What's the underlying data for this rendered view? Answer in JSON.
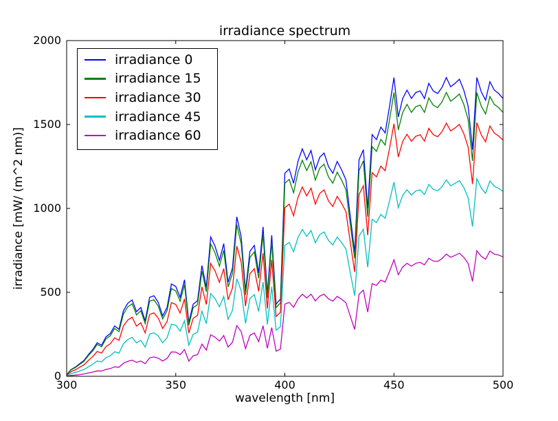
{
  "chart_data": {
    "type": "line",
    "title": "irradiance spectrum",
    "xlabel": "wavelength [nm]",
    "ylabel": "irradiance [mW/ (m^2 nm)]",
    "xlim": [
      300,
      500
    ],
    "ylim": [
      0,
      2000
    ],
    "grid": false,
    "legend_position": "upper left",
    "xticks": [
      300,
      350,
      400,
      450,
      500
    ],
    "yticks": [
      0,
      500,
      1000,
      1500,
      2000
    ],
    "xtick_labels": [
      "300",
      "350",
      "400",
      "450",
      "500"
    ],
    "ytick_labels": [
      "0",
      "500",
      "1000",
      "1500",
      "2000"
    ],
    "x": [
      300,
      302,
      304,
      306,
      308,
      310,
      312,
      314,
      316,
      318,
      320,
      322,
      324,
      326,
      328,
      330,
      332,
      334,
      336,
      338,
      340,
      342,
      344,
      346,
      348,
      350,
      352,
      354,
      356,
      358,
      360,
      362,
      364,
      366,
      368,
      370,
      372,
      374,
      376,
      378,
      380,
      382,
      384,
      386,
      388,
      390,
      392,
      394,
      396,
      398,
      400,
      402,
      404,
      406,
      408,
      410,
      412,
      414,
      416,
      418,
      420,
      422,
      424,
      426,
      428,
      430,
      432,
      434,
      436,
      438,
      440,
      442,
      444,
      446,
      448,
      450,
      452,
      454,
      456,
      458,
      460,
      462,
      464,
      466,
      468,
      470,
      472,
      474,
      476,
      478,
      480,
      482,
      484,
      486,
      488,
      490,
      492,
      494,
      496,
      498,
      500
    ],
    "series": [
      {
        "name": "irradiance 0",
        "color": "#0000ff",
        "values": [
          10,
          40,
          55,
          75,
          95,
          130,
          160,
          200,
          185,
          235,
          255,
          300,
          280,
          390,
          435,
          455,
          385,
          410,
          330,
          470,
          480,
          440,
          360,
          410,
          550,
          535,
          470,
          575,
          320,
          430,
          450,
          660,
          530,
          830,
          775,
          690,
          790,
          560,
          645,
          950,
          830,
          510,
          745,
          780,
          615,
          890,
          490,
          840,
          430,
          460,
          1210,
          1235,
          1150,
          1280,
          1355,
          1290,
          1345,
          1230,
          1305,
          1330,
          1250,
          1210,
          1280,
          1230,
          1170,
          950,
          740,
          1290,
          1350,
          1000,
          1440,
          1410,
          1485,
          1450,
          1610,
          1780,
          1545,
          1655,
          1705,
          1655,
          1690,
          1700,
          1655,
          1745,
          1700,
          1685,
          1720,
          1780,
          1725,
          1745,
          1770,
          1705,
          1610,
          1350,
          1780,
          1695,
          1645,
          1755,
          1705,
          1685,
          1655
        ]
      },
      {
        "name": "irradiance 15",
        "color": "#008000",
        "values": [
          10,
          38,
          52,
          71,
          90,
          124,
          152,
          190,
          176,
          223,
          242,
          285,
          266,
          371,
          413,
          432,
          366,
          390,
          314,
          447,
          456,
          418,
          342,
          390,
          523,
          508,
          447,
          546,
          304,
          409,
          428,
          627,
          504,
          789,
          736,
          656,
          751,
          532,
          613,
          903,
          789,
          485,
          708,
          741,
          584,
          846,
          466,
          798,
          409,
          437,
          1150,
          1173,
          1093,
          1216,
          1287,
          1226,
          1278,
          1169,
          1240,
          1264,
          1188,
          1150,
          1216,
          1169,
          1112,
          903,
          703,
          1226,
          1283,
          950,
          1368,
          1340,
          1411,
          1378,
          1530,
          1691,
          1468,
          1572,
          1620,
          1572,
          1606,
          1615,
          1572,
          1658,
          1615,
          1601,
          1634,
          1691,
          1639,
          1658,
          1682,
          1620,
          1530,
          1283,
          1691,
          1610,
          1563,
          1667,
          1620,
          1601,
          1572
        ]
      },
      {
        "name": "irradiance 30",
        "color": "#ff0000",
        "values": [
          7,
          28,
          39,
          54,
          69,
          95,
          118,
          148,
          138,
          177,
          194,
          229,
          214,
          300,
          335,
          352,
          299,
          319,
          258,
          368,
          378,
          347,
          285,
          326,
          439,
          428,
          377,
          461,
          257,
          346,
          363,
          533,
          428,
          672,
          628,
          560,
          642,
          456,
          526,
          776,
          679,
          418,
          611,
          641,
          506,
          733,
          404,
          694,
          356,
          381,
          1004,
          1026,
          956,
          1065,
          1128,
          1075,
          1121,
          1026,
          1089,
          1111,
          1045,
          1012,
          1072,
          1030,
          981,
          797,
          621,
          1084,
          1135,
          841,
          1213,
          1188,
          1252,
          1224,
          1359,
          1504,
          1306,
          1399,
          1442,
          1400,
          1430,
          1439,
          1401,
          1477,
          1440,
          1427,
          1457,
          1508,
          1462,
          1479,
          1501,
          1446,
          1366,
          1146,
          1511,
          1439,
          1397,
          1491,
          1449,
          1432,
          1407
        ]
      },
      {
        "name": "irradiance 45",
        "color": "#00bfbf",
        "values": [
          4,
          16,
          23,
          32,
          41,
          57,
          72,
          91,
          86,
          111,
          122,
          146,
          138,
          194,
          219,
          232,
          199,
          214,
          174,
          251,
          259,
          240,
          199,
          229,
          310,
          305,
          269,
          331,
          185,
          250,
          263,
          388,
          313,
          493,
          463,
          414,
          476,
          339,
          393,
          581,
          510,
          315,
          463,
          487,
          386,
          561,
          310,
          534,
          275,
          295,
          780,
          797,
          742,
          826,
          875,
          833,
          869,
          795,
          844,
          860,
          809,
          783,
          829,
          797,
          758,
          616,
          480,
          836,
          876,
          649,
          935,
          915,
          964,
          942,
          1046,
          1157,
          1005,
          1078,
          1111,
          1080,
          1104,
          1111,
          1083,
          1143,
          1114,
          1105,
          1129,
          1170,
          1135,
          1149,
          1166,
          1125,
          1063,
          892,
          1177,
          1122,
          1090,
          1164,
          1132,
          1120,
          1101
        ]
      },
      {
        "name": "irradiance 60",
        "color": "#bf00bf",
        "values": [
          1,
          5,
          7,
          10,
          14,
          20,
          25,
          32,
          31,
          41,
          46,
          56,
          54,
          77,
          89,
          96,
          83,
          91,
          75,
          110,
          115,
          108,
          91,
          106,
          145,
          144,
          129,
          159,
          90,
          122,
          129,
          192,
          156,
          247,
          233,
          210,
          243,
          174,
          203,
          302,
          266,
          165,
          244,
          258,
          206,
          301,
          167,
          290,
          150,
          162,
          430,
          440,
          411,
          460,
          489,
          467,
          489,
          449,
          478,
          489,
          461,
          448,
          476,
          459,
          438,
          357,
          279,
          489,
          513,
          382,
          552,
          542,
          573,
          561,
          626,
          694,
          605,
          651,
          673,
          656,
          673,
          679,
          664,
          703,
          687,
          684,
          701,
          728,
          709,
          720,
          733,
          709,
          672,
          565,
          748,
          715,
          697,
          746,
          728,
          722,
          712
        ]
      }
    ]
  }
}
